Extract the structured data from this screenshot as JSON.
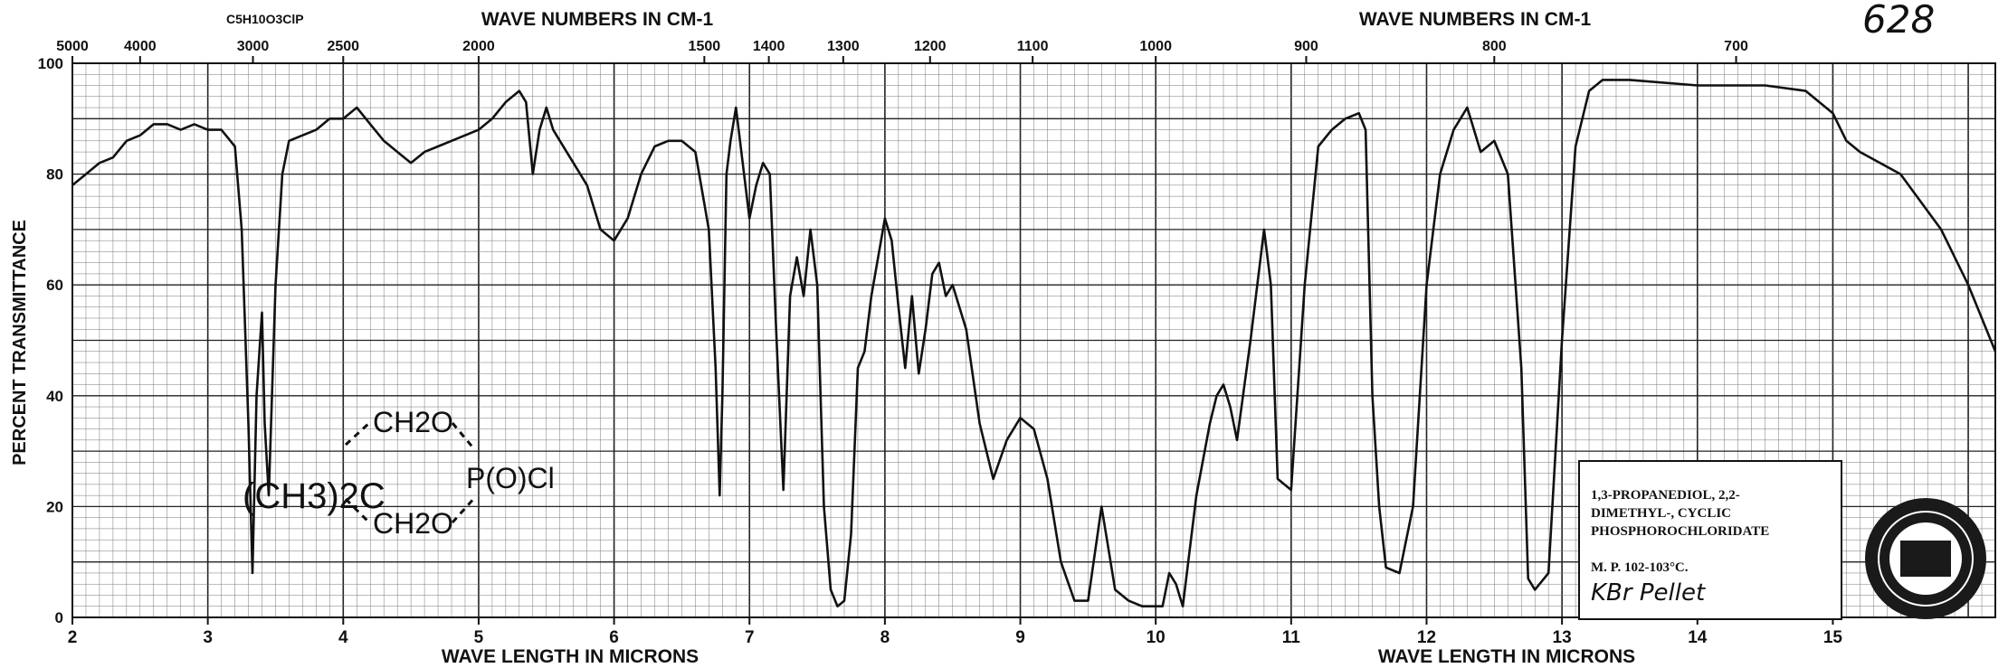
{
  "page_number": "628",
  "formula": "C5H10O3ClP",
  "structure": {
    "left_group": "(CH3)2C",
    "top_group": "CH2O",
    "bottom_group": "CH2O",
    "right_group": "P(O)Cl"
  },
  "info_box": {
    "lines": [
      "1,3-PROPANEDIOL, 2,2-",
      "DIMETHYL-, CYCLIC",
      "PHOSPHOROCHLORIDATE"
    ],
    "melting_point": "M. P. 102-103°C.",
    "sample": "KBr Pellet"
  },
  "colors": {
    "ink": "#111111",
    "grid_major": "#222222",
    "grid_minor": "#777777",
    "paper": "#ffffff"
  },
  "chart_data": {
    "type": "line",
    "title": "",
    "xlabel": "WAVE LENGTH IN MICRONS",
    "ylabel": "PERCENT TRANSMITTANCE",
    "top_axis_label": "WAVE NUMBERS IN CM-1",
    "xlim": [
      2,
      16.2
    ],
    "ylim": [
      0,
      100
    ],
    "x_ticks": [
      2,
      3,
      4,
      5,
      6,
      7,
      8,
      9,
      10,
      11,
      12,
      13,
      14,
      15
    ],
    "x_tick_labels": [
      "2",
      "3",
      "4",
      "5",
      "6",
      "7",
      "8",
      "9",
      "10",
      "11",
      "12",
      "13",
      "14",
      "15"
    ],
    "y_ticks": [
      0,
      20,
      40,
      60,
      80,
      100
    ],
    "y_tick_labels": [
      "0",
      "20",
      "40",
      "60",
      "80",
      "100"
    ],
    "top_ticks_cm": [
      5000,
      4000,
      3000,
      2500,
      2000,
      1500,
      1400,
      1300,
      1200,
      1100,
      1000,
      900,
      800,
      700
    ],
    "top_tick_labels": [
      "5000",
      "4000",
      "3000",
      "2500",
      "2000",
      "1500",
      "1400",
      "1300",
      "1200",
      "1100",
      "1000",
      "900",
      "800",
      "700"
    ],
    "grid": true,
    "series": [
      {
        "x": [
          2.0,
          2.1,
          2.2,
          2.3,
          2.4,
          2.5,
          2.6,
          2.7,
          2.8,
          2.9,
          3.0,
          3.1,
          3.2,
          3.25,
          3.3,
          3.33,
          3.36,
          3.4,
          3.42,
          3.45,
          3.5,
          3.55,
          3.6,
          3.7,
          3.8,
          3.9,
          4.0,
          4.1,
          4.2,
          4.3,
          4.4,
          4.5,
          4.6,
          4.7,
          4.8,
          4.9,
          5.0,
          5.1,
          5.2,
          5.3,
          5.35,
          5.4,
          5.45,
          5.5,
          5.55,
          5.6,
          5.7,
          5.8,
          5.9,
          6.0,
          6.1,
          6.2,
          6.3,
          6.4,
          6.5,
          6.6,
          6.7,
          6.75,
          6.78,
          6.8,
          6.83,
          6.86,
          6.9,
          7.0,
          7.05,
          7.1,
          7.15,
          7.2,
          7.25,
          7.3,
          7.35,
          7.4,
          7.45,
          7.5,
          7.55,
          7.6,
          7.65,
          7.7,
          7.75,
          7.8,
          7.85,
          7.9,
          7.95,
          8.0,
          8.05,
          8.1,
          8.15,
          8.2,
          8.25,
          8.3,
          8.35,
          8.4,
          8.45,
          8.5,
          8.6,
          8.7,
          8.8,
          8.9,
          9.0,
          9.1,
          9.2,
          9.3,
          9.4,
          9.5,
          9.6,
          9.7,
          9.8,
          9.9,
          10.0,
          10.05,
          10.1,
          10.15,
          10.2,
          10.3,
          10.4,
          10.45,
          10.5,
          10.55,
          10.6,
          10.7,
          10.8,
          10.85,
          10.9,
          11.0,
          11.1,
          11.2,
          11.3,
          11.4,
          11.5,
          11.55,
          11.6,
          11.65,
          11.7,
          11.8,
          11.9,
          12.0,
          12.1,
          12.2,
          12.3,
          12.35,
          12.4,
          12.5,
          12.6,
          12.7,
          12.75,
          12.8,
          12.9,
          13.0,
          13.1,
          13.2,
          13.3,
          13.5,
          14.0,
          14.5,
          14.8,
          15.0,
          15.1,
          15.2,
          15.5,
          15.8,
          16.0,
          16.2
        ],
        "y": [
          78,
          80,
          82,
          83,
          86,
          87,
          89,
          89,
          88,
          89,
          88,
          88,
          85,
          70,
          35,
          8,
          40,
          55,
          35,
          22,
          60,
          80,
          86,
          87,
          88,
          90,
          90,
          92,
          89,
          86,
          84,
          82,
          84,
          85,
          86,
          87,
          88,
          90,
          93,
          95,
          93,
          80,
          88,
          92,
          88,
          86,
          82,
          78,
          70,
          68,
          72,
          80,
          85,
          86,
          86,
          84,
          70,
          45,
          22,
          40,
          80,
          86,
          92,
          72,
          78,
          82,
          80,
          50,
          23,
          58,
          65,
          58,
          70,
          60,
          20,
          5,
          2,
          3,
          15,
          45,
          48,
          58,
          65,
          72,
          68,
          56,
          45,
          58,
          44,
          52,
          62,
          64,
          58,
          60,
          52,
          35,
          25,
          32,
          36,
          34,
          25,
          10,
          3,
          3,
          20,
          5,
          3,
          2,
          2,
          2,
          8,
          6,
          2,
          22,
          35,
          40,
          42,
          38,
          32,
          50,
          70,
          60,
          25,
          23,
          60,
          85,
          88,
          90,
          91,
          88,
          40,
          20,
          9,
          8,
          20,
          60,
          80,
          88,
          92,
          88,
          84,
          86,
          80,
          45,
          7,
          5,
          8,
          50,
          85,
          95,
          97,
          97,
          96,
          96,
          95,
          91,
          86,
          84,
          80,
          70,
          60,
          48
        ]
      }
    ]
  }
}
